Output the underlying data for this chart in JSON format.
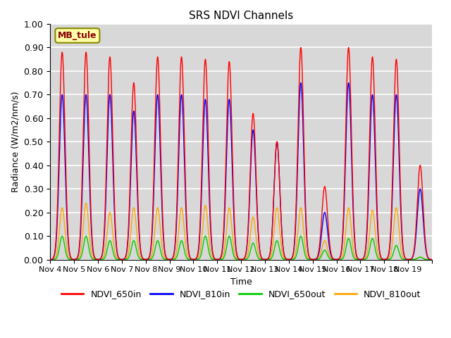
{
  "title": "SRS NDVI Channels",
  "xlabel": "Time",
  "ylabel": "Radiance (W/m2/nm/s)",
  "site_label": "MB_tule",
  "ylim": [
    0.0,
    1.0
  ],
  "background_color": "#d8d8d8",
  "grid_color": "white",
  "legend": [
    {
      "label": "NDVI_650in",
      "color": "#ff0000"
    },
    {
      "label": "NDVI_810in",
      "color": "#0000ff"
    },
    {
      "label": "NDVI_650out",
      "color": "#00cc00"
    },
    {
      "label": "NDVI_810out",
      "color": "#ffa500"
    }
  ],
  "tick_dates": [
    "Nov 4",
    "Nov 5",
    "Nov 6",
    "Nov 7",
    "Nov 8",
    "Nov 9",
    "Nov 10",
    "Nov 11",
    "Nov 12",
    "Nov 13",
    "Nov 14",
    "Nov 15",
    "Nov 16",
    "Nov 17",
    "Nov 18",
    "Nov 19"
  ],
  "num_days": 16,
  "day_peaks": {
    "NDVI_650in": [
      0.88,
      0.88,
      0.86,
      0.75,
      0.86,
      0.86,
      0.85,
      0.84,
      0.62,
      0.5,
      0.9,
      0.31,
      0.9,
      0.86,
      0.85,
      0.4
    ],
    "NDVI_810in": [
      0.7,
      0.7,
      0.7,
      0.63,
      0.7,
      0.7,
      0.68,
      0.68,
      0.55,
      0.5,
      0.75,
      0.2,
      0.75,
      0.7,
      0.7,
      0.3
    ],
    "NDVI_650out": [
      0.1,
      0.1,
      0.08,
      0.08,
      0.08,
      0.08,
      0.1,
      0.1,
      0.07,
      0.08,
      0.1,
      0.04,
      0.09,
      0.09,
      0.06,
      0.01
    ],
    "NDVI_810out": [
      0.22,
      0.24,
      0.2,
      0.22,
      0.22,
      0.22,
      0.23,
      0.22,
      0.18,
      0.22,
      0.22,
      0.08,
      0.22,
      0.21,
      0.22,
      0.01
    ]
  },
  "figsize": [
    6.4,
    4.8
  ],
  "dpi": 100
}
